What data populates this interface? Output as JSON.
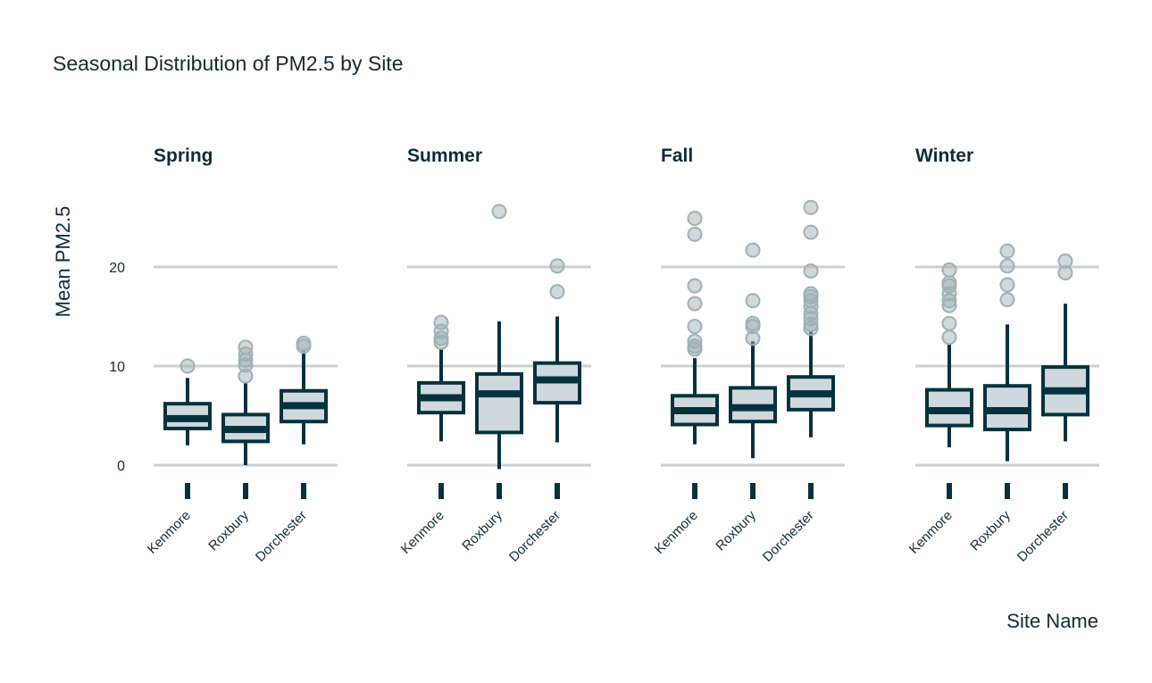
{
  "colors": {
    "ink": "#06323f",
    "box_fill": "#cfd8dc",
    "grid": "#c9d1d5",
    "outlier": "#9fb1b6"
  },
  "chart_data": {
    "type": "boxplot",
    "title": "Seasonal Distribution of PM2.5 by Site",
    "xlabel": "Site Name",
    "ylabel": "Mean PM2.5",
    "ylim": [
      -3,
      27
    ],
    "yticks": [
      0,
      10,
      20
    ],
    "grid": true,
    "categories": [
      "Kenmore",
      "Roxbury",
      "Dorchester"
    ],
    "facets": [
      {
        "name": "Spring",
        "boxes": [
          {
            "site": "Kenmore",
            "whisker_low": 2.0,
            "q1": 3.7,
            "median": 4.7,
            "q3": 6.2,
            "whisker_high": 8.8,
            "outliers": [
              10.0
            ]
          },
          {
            "site": "Roxbury",
            "whisker_low": 0.0,
            "q1": 2.4,
            "median": 3.6,
            "q3": 5.1,
            "whisker_high": 8.4,
            "outliers": [
              9.0,
              10.1,
              10.6,
              11.2,
              11.9
            ]
          },
          {
            "site": "Dorchester",
            "whisker_low": 2.1,
            "q1": 4.4,
            "median": 6.0,
            "q3": 7.5,
            "whisker_high": 11.5,
            "outliers": [
              12.0,
              12.3
            ]
          }
        ]
      },
      {
        "name": "Summer",
        "boxes": [
          {
            "site": "Kenmore",
            "whisker_low": 2.4,
            "q1": 5.3,
            "median": 6.8,
            "q3": 8.3,
            "whisker_high": 11.8,
            "outliers": [
              12.4,
              12.8,
              13.5,
              14.4
            ]
          },
          {
            "site": "Roxbury",
            "whisker_low": -0.4,
            "q1": 3.3,
            "median": 7.2,
            "q3": 9.2,
            "whisker_high": 14.5,
            "outliers": [
              25.6
            ]
          },
          {
            "site": "Dorchester",
            "whisker_low": 2.3,
            "q1": 6.3,
            "median": 8.6,
            "q3": 10.3,
            "whisker_high": 15.0,
            "outliers": [
              17.5,
              20.1
            ]
          }
        ]
      },
      {
        "name": "Fall",
        "boxes": [
          {
            "site": "Kenmore",
            "whisker_low": 2.1,
            "q1": 4.1,
            "median": 5.5,
            "q3": 7.0,
            "whisker_high": 10.8,
            "outliers": [
              11.7,
              12.0,
              12.5,
              14.0,
              16.3,
              18.1,
              23.3,
              24.9
            ]
          },
          {
            "site": "Roxbury",
            "whisker_low": 0.7,
            "q1": 4.4,
            "median": 5.8,
            "q3": 7.8,
            "whisker_high": 12.5,
            "outliers": [
              12.8,
              14.0,
              14.3,
              16.6,
              21.7
            ]
          },
          {
            "site": "Dorchester",
            "whisker_low": 2.8,
            "q1": 5.6,
            "median": 7.2,
            "q3": 8.9,
            "whisker_high": 13.5,
            "outliers": [
              13.8,
              14.2,
              14.8,
              15.3,
              16.0,
              16.6,
              17.0,
              17.3,
              19.6,
              23.5,
              26.0
            ]
          }
        ]
      },
      {
        "name": "Winter",
        "boxes": [
          {
            "site": "Kenmore",
            "whisker_low": 1.8,
            "q1": 4.0,
            "median": 5.5,
            "q3": 7.6,
            "whisker_high": 12.2,
            "outliers": [
              12.9,
              14.3,
              16.1,
              16.6,
              17.3,
              18.1,
              18.4,
              19.7
            ]
          },
          {
            "site": "Roxbury",
            "whisker_low": 0.4,
            "q1": 3.6,
            "median": 5.5,
            "q3": 8.0,
            "whisker_high": 14.2,
            "outliers": [
              16.7,
              18.2,
              20.1,
              21.6
            ]
          },
          {
            "site": "Dorchester",
            "whisker_low": 2.4,
            "q1": 5.1,
            "median": 7.5,
            "q3": 9.9,
            "whisker_high": 16.3,
            "outliers": [
              19.4,
              20.6
            ]
          }
        ]
      }
    ]
  }
}
